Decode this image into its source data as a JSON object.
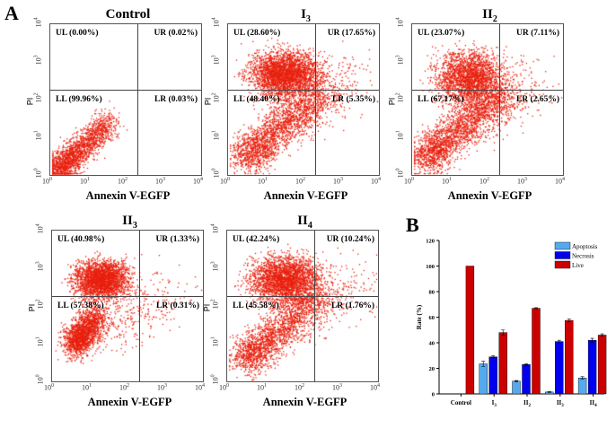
{
  "labels": {
    "a": "A",
    "b": "B"
  },
  "flow_panels": [
    {
      "title": "Control",
      "sub": "",
      "xlabel": "Annexin V-EGFP",
      "ylabel": "PI",
      "UL": "UL (0.00%)",
      "UR": "UR (0.02%)",
      "LL": "LL (99.96%)",
      "LR": "LR (0.03%)"
    },
    {
      "title": "I",
      "sub": "3",
      "xlabel": "Annexin V-EGFP",
      "ylabel": "PI",
      "UL": "UL (28.60%)",
      "UR": "UR (17.65%)",
      "LL": "LL (48.40%)",
      "LR": "LR (5.35%)"
    },
    {
      "title": "II",
      "sub": "2",
      "xlabel": "Annexin V-EGFP",
      "ylabel": "PI",
      "UL": "UL (23.07%)",
      "UR": "UR (7.11%)",
      "LL": "LL (67.17%)",
      "LR": "LR (2.65%)"
    },
    {
      "title": "II",
      "sub": "3",
      "xlabel": "Annexin V-EGFP",
      "ylabel": "PI",
      "UL": "UL (40.98%)",
      "UR": "UR (1.33%)",
      "LL": "LL (57.38%)",
      "LR": "LR (0.31%)"
    },
    {
      "title": "II",
      "sub": "4",
      "xlabel": "Annexin V-EGFP",
      "ylabel": "PI",
      "UL": "UL (42.24%)",
      "UR": "UR (10.24%)",
      "LL": "LL (45.58%)",
      "LR": "LR (1.76%)"
    }
  ],
  "axis_exponents": [
    "0",
    "1",
    "2",
    "3",
    "4"
  ],
  "axis_base": "10",
  "colors": {
    "dots": "#e8200e",
    "apoptosis": "#55aaee",
    "necrosis": "#0000ee",
    "live": "#cc0000"
  },
  "chart_data": {
    "type": "bar",
    "ylabel": "Rate (%)",
    "ylim": [
      0,
      120
    ],
    "yticks": [
      "0",
      "20",
      "40",
      "60",
      "80",
      "100",
      "120"
    ],
    "categories": [
      "Control",
      "I3",
      "II2",
      "II3",
      "II4"
    ],
    "category_labels": [
      [
        "Control",
        ""
      ],
      [
        "I",
        "3"
      ],
      [
        "II",
        "2"
      ],
      [
        "II",
        "3"
      ],
      [
        "II",
        "4"
      ]
    ],
    "legend_position": "top-right",
    "series": [
      {
        "name": "Apoptosis",
        "values": [
          0,
          23.5,
          10,
          1.5,
          12.5
        ],
        "errors": [
          0,
          2,
          0.5,
          0.3,
          1
        ]
      },
      {
        "name": "Necrosis",
        "values": [
          0,
          29,
          23,
          41,
          42
        ],
        "errors": [
          0,
          0.8,
          0.5,
          1,
          1.5
        ]
      },
      {
        "name": "Live",
        "values": [
          100,
          48,
          67,
          57.5,
          46
        ],
        "errors": [
          0,
          2,
          0.4,
          1,
          1
        ]
      }
    ]
  }
}
